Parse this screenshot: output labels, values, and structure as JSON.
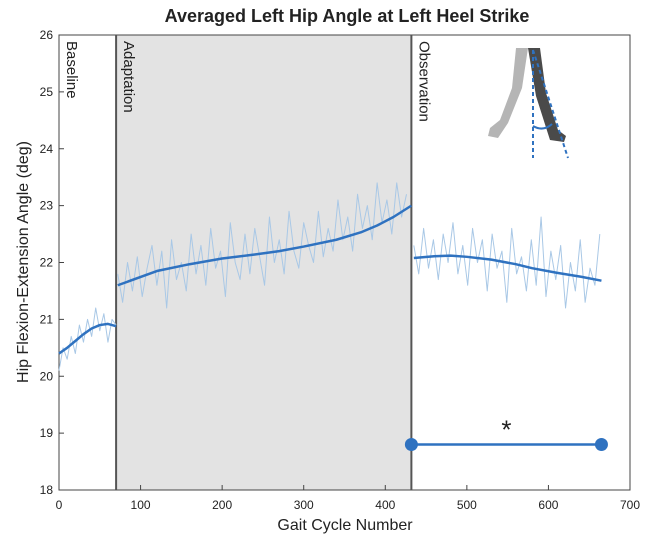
{
  "chart_data": {
    "type": "line",
    "title": "Averaged Left Hip Angle at Left Heel Strike",
    "xlabel": "Gait Cycle Number",
    "ylabel": "Hip Flexion-Extension Angle (deg)",
    "xlim": [
      0,
      700
    ],
    "xticks": [
      0,
      100,
      200,
      300,
      400,
      500,
      600,
      700
    ],
    "ylim": [
      18,
      26
    ],
    "yticks": [
      18,
      19,
      20,
      21,
      22,
      23,
      24,
      25,
      26
    ],
    "phases": [
      {
        "label": "Baseline",
        "x": 0
      },
      {
        "label": "Adaptation",
        "x": 70
      },
      {
        "label": "Observation",
        "x": 432
      }
    ],
    "shaded": [
      70,
      432
    ],
    "shade_color": "#e3e3e3",
    "series": [
      {
        "color": "#a9c8e6",
        "width": 1,
        "x": [
          0,
          5,
          10,
          15,
          20,
          25,
          30,
          35,
          40,
          45,
          50,
          55,
          60,
          65,
          70
        ],
        "values": [
          20.1,
          20.5,
          20.3,
          20.7,
          20.4,
          20.9,
          20.6,
          21.0,
          20.7,
          21.2,
          20.8,
          21.1,
          20.6,
          21.0,
          20.9
        ]
      },
      {
        "color": "#a9c8e6",
        "width": 1,
        "x": [
          72,
          78,
          84,
          90,
          96,
          102,
          108,
          114,
          120,
          126,
          132,
          138,
          144,
          150,
          156,
          162,
          168,
          174,
          180,
          186,
          192,
          198,
          204,
          210,
          216,
          222,
          228,
          234,
          240,
          246,
          252,
          258,
          264,
          270,
          276,
          282,
          288,
          294,
          300,
          306,
          312,
          318,
          324,
          330,
          336,
          342,
          348,
          354,
          360,
          366,
          372,
          378,
          384,
          390,
          396,
          402,
          408,
          414,
          420,
          426
        ],
        "values": [
          21.8,
          21.3,
          22.0,
          21.5,
          22.1,
          21.4,
          21.9,
          22.3,
          21.6,
          22.2,
          21.2,
          22.4,
          21.7,
          22.0,
          21.5,
          22.5,
          21.8,
          22.3,
          21.6,
          22.6,
          21.9,
          22.2,
          21.4,
          22.7,
          22.0,
          21.7,
          22.5,
          21.8,
          22.6,
          22.1,
          21.6,
          22.8,
          22.0,
          22.4,
          21.8,
          22.9,
          22.2,
          21.9,
          22.7,
          22.3,
          22.0,
          22.9,
          22.1,
          22.6,
          22.2,
          23.1,
          22.4,
          22.8,
          22.2,
          23.2,
          22.6,
          23.0,
          22.4,
          23.4,
          22.7,
          23.1,
          22.5,
          23.4,
          22.8,
          23.2
        ]
      },
      {
        "color": "#a9c8e6",
        "width": 1,
        "x": [
          435,
          441,
          447,
          453,
          459,
          465,
          471,
          477,
          483,
          489,
          495,
          501,
          507,
          513,
          519,
          525,
          531,
          537,
          543,
          549,
          555,
          561,
          567,
          573,
          579,
          585,
          591,
          597,
          603,
          609,
          615,
          621,
          627,
          633,
          639,
          645,
          651,
          657,
          663
        ],
        "values": [
          22.3,
          21.8,
          22.6,
          21.9,
          22.4,
          21.7,
          22.5,
          22.0,
          22.7,
          21.8,
          22.3,
          21.6,
          22.6,
          22.0,
          22.4,
          21.5,
          22.5,
          21.9,
          22.2,
          21.3,
          22.6,
          21.8,
          22.1,
          21.5,
          22.4,
          21.6,
          22.8,
          21.4,
          22.2,
          21.7,
          22.3,
          21.2,
          22.0,
          21.5,
          22.4,
          21.3,
          21.9,
          21.6,
          22.5
        ]
      },
      {
        "color": "#2f72c0",
        "width": 2.5,
        "x": [
          0,
          10,
          20,
          30,
          40,
          50,
          60,
          70
        ],
        "values": [
          20.4,
          20.5,
          20.62,
          20.74,
          20.84,
          20.9,
          20.92,
          20.88
        ]
      },
      {
        "color": "#2f72c0",
        "width": 2.5,
        "x": [
          72,
          120,
          160,
          200,
          240,
          270,
          300,
          340,
          370,
          390,
          410,
          432
        ],
        "values": [
          21.6,
          21.85,
          21.97,
          22.07,
          22.14,
          22.2,
          22.28,
          22.4,
          22.53,
          22.65,
          22.8,
          23.0
        ]
      },
      {
        "color": "#2f72c0",
        "width": 2.5,
        "x": [
          435,
          460,
          480,
          500,
          530,
          560,
          580,
          610,
          640,
          665
        ],
        "values": [
          22.08,
          22.11,
          22.12,
          22.1,
          22.05,
          21.97,
          21.9,
          21.82,
          21.75,
          21.68
        ]
      }
    ],
    "significance": {
      "x": [
        432,
        665
      ],
      "y": 18.8,
      "label": "*",
      "color": "#2f72c0"
    }
  }
}
